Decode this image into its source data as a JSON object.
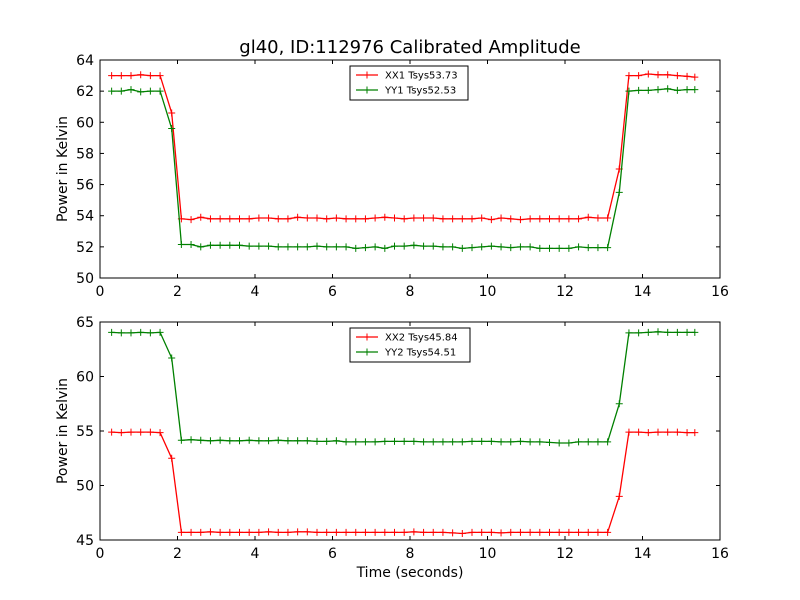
{
  "figure_title": "gl40, ID:112976 Calibrated Amplitude",
  "chart_data": [
    {
      "type": "line",
      "title": "gl40, ID:112976 Calibrated Amplitude",
      "xlabel": "",
      "ylabel": "Power in Kelvin",
      "xlim": [
        0,
        16
      ],
      "ylim": [
        50,
        64
      ],
      "xticks": [
        0,
        2,
        4,
        6,
        8,
        10,
        12,
        14,
        16
      ],
      "yticks": [
        50,
        52,
        54,
        56,
        58,
        60,
        62,
        64
      ],
      "grid": false,
      "legend_position": "top-center",
      "x": [
        0.3,
        0.55,
        0.8,
        1.05,
        1.3,
        1.55,
        1.85,
        2.1,
        2.35,
        2.6,
        2.85,
        3.1,
        3.35,
        3.6,
        3.85,
        4.1,
        4.35,
        4.6,
        4.85,
        5.1,
        5.35,
        5.6,
        5.85,
        6.1,
        6.35,
        6.6,
        6.85,
        7.1,
        7.35,
        7.6,
        7.85,
        8.1,
        8.35,
        8.6,
        8.85,
        9.1,
        9.35,
        9.6,
        9.85,
        10.1,
        10.35,
        10.6,
        10.85,
        11.1,
        11.35,
        11.6,
        11.85,
        12.1,
        12.35,
        12.6,
        12.85,
        13.1,
        13.4,
        13.65,
        13.9,
        14.15,
        14.4,
        14.65,
        14.9,
        15.15,
        15.35
      ],
      "series": [
        {
          "name": "XX1 Tsys53.73",
          "color": "#ff0000",
          "values": [
            63.0,
            63.0,
            63.0,
            63.05,
            63.0,
            63.0,
            60.6,
            53.8,
            53.75,
            53.9,
            53.8,
            53.8,
            53.8,
            53.8,
            53.8,
            53.85,
            53.85,
            53.8,
            53.8,
            53.9,
            53.85,
            53.85,
            53.8,
            53.85,
            53.8,
            53.8,
            53.8,
            53.85,
            53.9,
            53.85,
            53.8,
            53.85,
            53.85,
            53.85,
            53.8,
            53.8,
            53.8,
            53.8,
            53.85,
            53.75,
            53.85,
            53.8,
            53.75,
            53.8,
            53.8,
            53.8,
            53.8,
            53.8,
            53.8,
            53.9,
            53.85,
            53.85,
            57.0,
            63.0,
            63.0,
            63.1,
            63.05,
            63.05,
            63.0,
            62.95,
            62.9
          ]
        },
        {
          "name": "YY1 Tsys52.53",
          "color": "#008000",
          "values": [
            62.0,
            62.0,
            62.1,
            61.95,
            62.0,
            62.0,
            59.6,
            52.15,
            52.15,
            52.0,
            52.1,
            52.1,
            52.1,
            52.1,
            52.05,
            52.05,
            52.05,
            52.0,
            52.0,
            52.0,
            52.0,
            52.05,
            52.0,
            52.0,
            52.0,
            51.9,
            51.95,
            52.0,
            51.9,
            52.05,
            52.05,
            52.1,
            52.05,
            52.05,
            52.0,
            52.0,
            51.9,
            51.95,
            52.0,
            52.05,
            52.0,
            51.95,
            52.0,
            52.0,
            51.9,
            51.9,
            51.9,
            51.9,
            52.0,
            51.95,
            51.95,
            51.95,
            55.5,
            62.0,
            62.05,
            62.05,
            62.1,
            62.15,
            62.05,
            62.1,
            62.1
          ]
        }
      ]
    },
    {
      "type": "line",
      "title": "",
      "xlabel": "Time (seconds)",
      "ylabel": "Power in Kelvin",
      "xlim": [
        0,
        16
      ],
      "ylim": [
        45,
        65
      ],
      "xticks": [
        0,
        2,
        4,
        6,
        8,
        10,
        12,
        14,
        16
      ],
      "yticks": [
        45,
        50,
        55,
        60,
        65
      ],
      "grid": false,
      "legend_position": "top-center",
      "x": [
        0.3,
        0.55,
        0.8,
        1.05,
        1.3,
        1.55,
        1.85,
        2.1,
        2.35,
        2.6,
        2.85,
        3.1,
        3.35,
        3.6,
        3.85,
        4.1,
        4.35,
        4.6,
        4.85,
        5.1,
        5.35,
        5.6,
        5.85,
        6.1,
        6.35,
        6.6,
        6.85,
        7.1,
        7.35,
        7.6,
        7.85,
        8.1,
        8.35,
        8.6,
        8.85,
        9.1,
        9.35,
        9.6,
        9.85,
        10.1,
        10.35,
        10.6,
        10.85,
        11.1,
        11.35,
        11.6,
        11.85,
        12.1,
        12.35,
        12.6,
        12.85,
        13.1,
        13.4,
        13.65,
        13.9,
        14.15,
        14.4,
        14.65,
        14.9,
        15.15,
        15.35
      ],
      "series": [
        {
          "name": "XX2 Tsys45.84",
          "color": "#ff0000",
          "values": [
            54.9,
            54.85,
            54.9,
            54.9,
            54.9,
            54.85,
            52.5,
            45.7,
            45.7,
            45.7,
            45.75,
            45.7,
            45.7,
            45.7,
            45.7,
            45.7,
            45.75,
            45.7,
            45.7,
            45.75,
            45.75,
            45.7,
            45.7,
            45.7,
            45.7,
            45.7,
            45.7,
            45.7,
            45.7,
            45.7,
            45.7,
            45.75,
            45.7,
            45.7,
            45.7,
            45.65,
            45.6,
            45.7,
            45.7,
            45.7,
            45.65,
            45.7,
            45.7,
            45.7,
            45.7,
            45.7,
            45.7,
            45.7,
            45.7,
            45.7,
            45.7,
            45.7,
            49.0,
            54.9,
            54.9,
            54.85,
            54.9,
            54.9,
            54.9,
            54.85,
            54.85
          ]
        },
        {
          "name": "YY2 Tsys54.51",
          "color": "#008000",
          "values": [
            64.05,
            64.0,
            64.0,
            64.05,
            64.0,
            64.05,
            61.7,
            54.15,
            54.2,
            54.15,
            54.1,
            54.15,
            54.1,
            54.1,
            54.15,
            54.1,
            54.1,
            54.15,
            54.1,
            54.1,
            54.1,
            54.05,
            54.05,
            54.1,
            54.0,
            54.0,
            54.0,
            54.0,
            54.05,
            54.05,
            54.05,
            54.05,
            54.0,
            54.0,
            54.0,
            54.0,
            54.0,
            54.05,
            54.05,
            54.05,
            54.0,
            54.0,
            54.05,
            54.0,
            54.0,
            53.95,
            53.9,
            53.9,
            54.0,
            54.0,
            54.0,
            54.0,
            57.5,
            64.0,
            64.0,
            64.05,
            64.1,
            64.05,
            64.05,
            64.05,
            64.05
          ]
        }
      ]
    }
  ]
}
